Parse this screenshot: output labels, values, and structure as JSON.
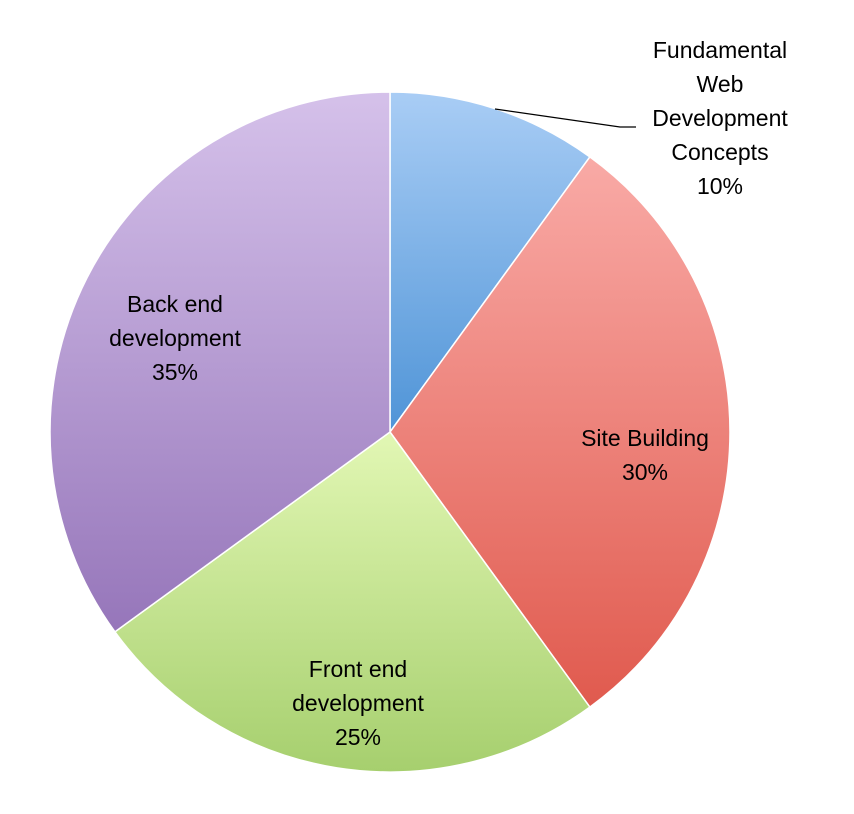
{
  "chart_data": {
    "type": "pie",
    "title": "",
    "start_angle_deg": 0,
    "direction": "clockwise",
    "legend": "none",
    "slices": [
      {
        "id": "fundamental",
        "label_lines": [
          "Fundamental",
          "Web",
          "Development",
          "Concepts"
        ],
        "percent_label": "10%",
        "value": 10,
        "color_top": "#a9cdf5",
        "color_bottom": "#4f94d7"
      },
      {
        "id": "site-building",
        "label_lines": [
          "Site Building"
        ],
        "percent_label": "30%",
        "value": 30,
        "color_top": "#f9aaa6",
        "color_bottom": "#e05a4e"
      },
      {
        "id": "front-end",
        "label_lines": [
          "Front end",
          "development"
        ],
        "percent_label": "25%",
        "value": 25,
        "color_top": "#e2f7b4",
        "color_bottom": "#a6cf6e"
      },
      {
        "id": "back-end",
        "label_lines": [
          "Back end",
          "development"
        ],
        "percent_label": "35%",
        "value": 35,
        "color_top": "#d5c1ea",
        "color_bottom": "#9676ba"
      }
    ]
  }
}
